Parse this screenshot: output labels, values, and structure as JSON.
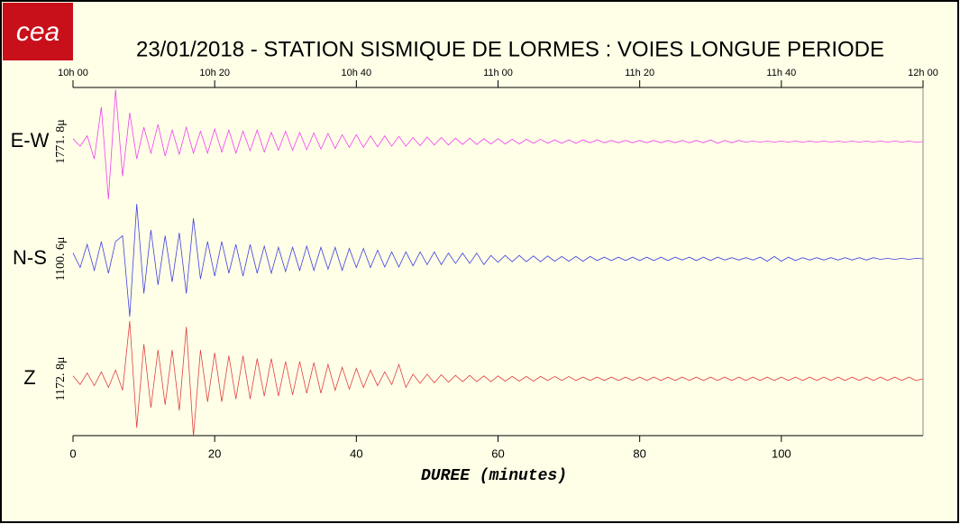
{
  "chart_data": {
    "type": "line",
    "logo": "cea",
    "title": "23/01/2018  -  STATION SISMIQUE DE LORMES : VOIES LONGUE PERIODE",
    "xlabel": "DUREE (minutes)",
    "xlim": [
      0,
      120
    ],
    "ylim": [
      -1,
      1
    ],
    "xticks": [
      0,
      20,
      40,
      60,
      80,
      100
    ],
    "x2ticks": [
      {
        "value": 0,
        "label": "10h 00"
      },
      {
        "value": 20,
        "label": "10h 20"
      },
      {
        "value": 40,
        "label": "10h 40"
      },
      {
        "value": 60,
        "label": "11h 00"
      },
      {
        "value": 80,
        "label": "11h 20"
      },
      {
        "value": 100,
        "label": "11h 40"
      },
      {
        "value": 120,
        "label": "12h 00"
      }
    ],
    "x": [
      0,
      1,
      2,
      3,
      4,
      5,
      6,
      7,
      8,
      9,
      10,
      11,
      12,
      13,
      14,
      15,
      16,
      17,
      18,
      19,
      20,
      21,
      22,
      23,
      24,
      25,
      26,
      27,
      28,
      29,
      30,
      31,
      32,
      33,
      34,
      35,
      36,
      37,
      38,
      39,
      40,
      41,
      42,
      43,
      44,
      45,
      46,
      47,
      48,
      49,
      50,
      51,
      52,
      53,
      54,
      55,
      56,
      57,
      58,
      59,
      60,
      61,
      62,
      63,
      64,
      65,
      66,
      67,
      68,
      69,
      70,
      71,
      72,
      73,
      74,
      75,
      76,
      77,
      78,
      79,
      80,
      81,
      82,
      83,
      84,
      85,
      86,
      87,
      88,
      89,
      90,
      91,
      92,
      93,
      94,
      95,
      96,
      97,
      98,
      99,
      100,
      101,
      102,
      103,
      104,
      105,
      106,
      107,
      108,
      109,
      110,
      111,
      112,
      113,
      114,
      115,
      116,
      117,
      118,
      119,
      120
    ],
    "series": [
      {
        "name": "E-W",
        "scale_label": "1771. 8μ",
        "color": "#f040f0",
        "values": [
          0.05,
          -0.08,
          0.1,
          -0.3,
          0.6,
          -1,
          0.9,
          -0.6,
          0.5,
          -0.3,
          0.25,
          -0.2,
          0.3,
          -0.25,
          0.2,
          -0.22,
          0.25,
          -0.2,
          0.18,
          -0.2,
          0.22,
          -0.18,
          0.2,
          -0.2,
          0.18,
          -0.16,
          0.2,
          -0.18,
          0.16,
          -0.15,
          0.18,
          -0.15,
          0.16,
          -0.14,
          0.15,
          -0.13,
          0.14,
          -0.12,
          0.12,
          -0.1,
          0.12,
          -0.1,
          0.1,
          -0.09,
          0.1,
          -0.08,
          0.09,
          -0.08,
          0.07,
          -0.07,
          0.08,
          -0.06,
          0.07,
          -0.06,
          0.06,
          -0.05,
          0.06,
          -0.05,
          0.05,
          -0.04,
          0.05,
          -0.04,
          0.04,
          -0.04,
          0.04,
          -0.03,
          0.04,
          -0.03,
          0.03,
          -0.03,
          0.03,
          -0.03,
          0.03,
          -0.02,
          0.03,
          -0.02,
          0.02,
          -0.02,
          0.02,
          -0.02,
          0.02,
          -0.02,
          0.02,
          -0.02,
          0.02,
          -0.02,
          0.02,
          -0.02,
          0.02,
          -0.02,
          0.03,
          -0.03,
          0.02,
          -0.02,
          0.02,
          -0.01,
          0.01,
          -0.01,
          0.01,
          -0.01,
          0.01,
          -0.01,
          0.01,
          -0.01,
          0.01,
          -0.01,
          0.01,
          -0.01,
          0.01,
          -0.01,
          0.01,
          -0.01,
          0.01,
          -0.01,
          0.01,
          -0.01,
          0.01,
          -0.01,
          0.01,
          -0.01,
          0
        ]
      },
      {
        "name": "N-S",
        "scale_label": "1100. 6μ",
        "color": "#4040e0",
        "values": [
          0.1,
          -0.15,
          0.25,
          -0.2,
          0.3,
          -0.25,
          0.3,
          0.4,
          -1,
          0.95,
          -0.6,
          0.5,
          -0.45,
          0.4,
          -0.4,
          0.45,
          -0.6,
          0.7,
          -0.35,
          0.3,
          -0.3,
          0.3,
          -0.25,
          0.25,
          -0.3,
          0.25,
          -0.25,
          0.22,
          -0.25,
          0.2,
          -0.22,
          0.2,
          -0.2,
          0.22,
          -0.2,
          0.2,
          -0.18,
          0.2,
          -0.2,
          0.18,
          -0.15,
          0.18,
          -0.15,
          0.15,
          -0.14,
          0.12,
          -0.14,
          0.12,
          -0.12,
          0.12,
          -0.1,
          0.12,
          -0.1,
          0.1,
          -0.08,
          0.1,
          -0.08,
          0.1,
          -0.1,
          0.06,
          -0.06,
          0.06,
          -0.05,
          0.06,
          -0.05,
          0.05,
          -0.05,
          0.05,
          -0.04,
          0.04,
          -0.04,
          0.04,
          -0.04,
          0.04,
          -0.03,
          0.03,
          -0.03,
          0.03,
          -0.03,
          0.03,
          -0.03,
          0.03,
          -0.03,
          0.03,
          -0.03,
          0.03,
          -0.02,
          0.03,
          -0.03,
          0.03,
          -0.03,
          0.03,
          -0.02,
          0.02,
          -0.02,
          0.02,
          -0.02,
          0.03,
          -0.04,
          0.04,
          -0.04,
          0.03,
          -0.03,
          0.02,
          -0.02,
          0.02,
          -0.02,
          0.02,
          -0.02,
          0.02,
          -0.02,
          0.02,
          -0.02,
          0.02,
          -0.01,
          0.01,
          -0.01,
          0.01,
          -0.01,
          0.01,
          0
        ]
      },
      {
        "name": "Z",
        "scale_label": "1172. 8μ",
        "color": "#e04040",
        "values": [
          0.05,
          -0.1,
          0.1,
          -0.12,
          0.12,
          -0.15,
          0.15,
          -0.2,
          1,
          -0.85,
          0.6,
          -0.5,
          0.5,
          -0.45,
          0.5,
          -0.55,
          0.9,
          -1,
          0.5,
          -0.4,
          0.45,
          -0.4,
          0.4,
          -0.35,
          0.4,
          -0.35,
          0.35,
          -0.3,
          0.35,
          -0.3,
          0.3,
          -0.28,
          0.3,
          -0.25,
          0.28,
          -0.25,
          0.25,
          -0.2,
          0.2,
          -0.18,
          0.18,
          -0.15,
          0.15,
          -0.12,
          0.12,
          -0.1,
          0.25,
          -0.15,
          0.08,
          -0.08,
          0.08,
          -0.07,
          0.07,
          -0.06,
          0.06,
          -0.05,
          0.06,
          -0.05,
          0.05,
          -0.05,
          0.05,
          -0.04,
          0.04,
          -0.04,
          0.04,
          -0.04,
          0.04,
          -0.03,
          0.04,
          -0.03,
          0.04,
          -0.03,
          0.03,
          -0.03,
          0.03,
          -0.03,
          0.03,
          -0.03,
          0.03,
          -0.03,
          0.03,
          -0.03,
          0.03,
          -0.03,
          0.03,
          -0.03,
          0.03,
          -0.03,
          0.03,
          -0.03,
          0.03,
          -0.03,
          0.03,
          -0.03,
          0.03,
          -0.03,
          0.03,
          -0.03,
          0.03,
          -0.03,
          0.03,
          -0.03,
          0.03,
          -0.03,
          0.03,
          -0.03,
          0.03,
          -0.03,
          0.03,
          -0.03,
          0.03,
          -0.03,
          0.03,
          -0.03,
          0.03,
          -0.03,
          0.03,
          -0.03,
          0.03,
          -0.03,
          0
        ]
      }
    ]
  }
}
